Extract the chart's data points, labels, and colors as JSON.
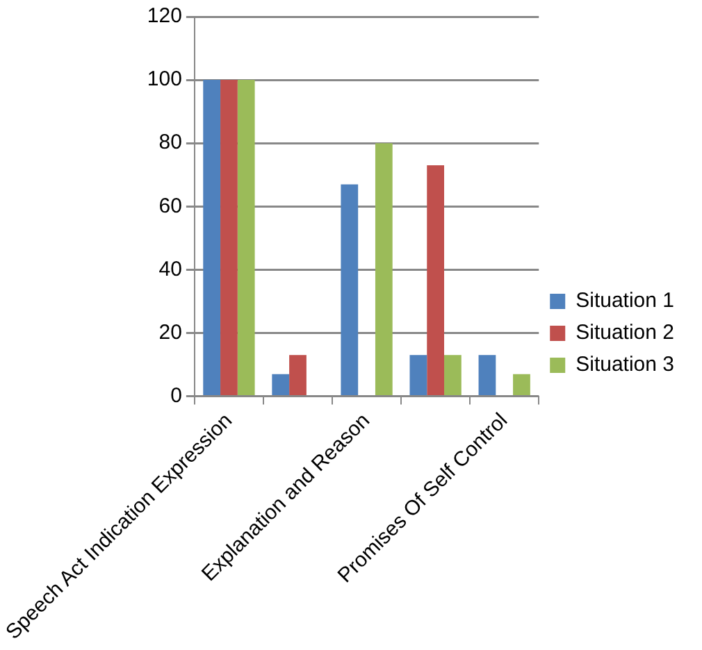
{
  "chart_data": {
    "type": "bar",
    "categories": [
      "Speech Act Indication Expression",
      null,
      "Explanation and Reason",
      null,
      "Promises Of Self Control"
    ],
    "series": [
      {
        "name": "Situation 1",
        "color": "#4f81bd",
        "values": [
          100,
          7,
          67,
          13,
          13
        ]
      },
      {
        "name": "Situation 2",
        "color": "#c0504d",
        "values": [
          100,
          13,
          0,
          73,
          0
        ]
      },
      {
        "name": "Situation 3",
        "color": "#9bbb59",
        "values": [
          100,
          0,
          80,
          13,
          7
        ]
      }
    ],
    "ylim": [
      0,
      120
    ],
    "yticks": [
      0,
      20,
      40,
      60,
      80,
      100,
      120
    ],
    "grid": "y",
    "legend": "right"
  }
}
